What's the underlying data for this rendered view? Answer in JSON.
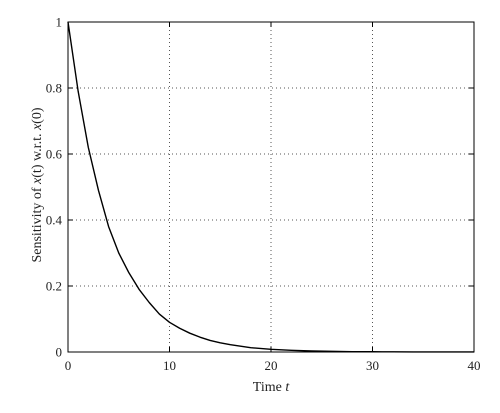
{
  "chart_data": {
    "type": "line",
    "xlabel": {
      "text": "Time ",
      "var": "t"
    },
    "ylabel": {
      "prefix": "Sensitivity of ",
      "var1": "x",
      "arg1": "(t)",
      "mid": " w.r.t. ",
      "var2": "x",
      "arg2": "(0)"
    },
    "xlim": [
      0,
      40
    ],
    "ylim": [
      0,
      1
    ],
    "x_ticks": [
      0,
      10,
      20,
      30,
      40
    ],
    "y_ticks": [
      0,
      0.2,
      0.4,
      0.6,
      0.8,
      1
    ],
    "x_tick_labels": [
      "0",
      "10",
      "20",
      "30",
      "40"
    ],
    "y_tick_labels": [
      "0",
      "0.2",
      "0.4",
      "0.6",
      "0.8",
      "1"
    ],
    "grid": true,
    "line_color": "#000000",
    "grid_color": "#555555",
    "series": [
      {
        "x": [
          0,
          1,
          2,
          3,
          4,
          5,
          6,
          7,
          8,
          9,
          10,
          11,
          12,
          13,
          14,
          15,
          16,
          18,
          20,
          22,
          24,
          26,
          28,
          30,
          32,
          34,
          36,
          38,
          40
        ],
        "values": [
          1.0,
          0.79,
          0.62,
          0.49,
          0.38,
          0.3,
          0.24,
          0.19,
          0.15,
          0.115,
          0.09,
          0.072,
          0.057,
          0.045,
          0.035,
          0.028,
          0.022,
          0.013,
          0.008,
          0.005,
          0.003,
          0.002,
          0.001,
          0.0008,
          0.0005,
          0.0003,
          0.0002,
          0.0001,
          0.0001
        ]
      }
    ]
  }
}
